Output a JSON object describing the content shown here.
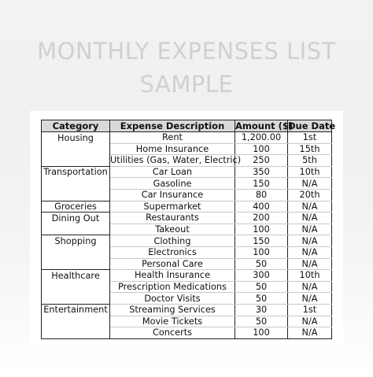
{
  "title": "MONTHLY EXPENSES LIST SAMPLE",
  "table": {
    "headers": [
      "Category",
      "Expense Description",
      "Amount ($)",
      "Due Date"
    ],
    "rows": [
      {
        "category": "Housing",
        "description": "Rent",
        "amount": "1,200.00",
        "due": "1st"
      },
      {
        "category": "",
        "description": "Home Insurance",
        "amount": "100",
        "due": "15th"
      },
      {
        "category": "",
        "description": "Utilities (Gas, Water, Electric)",
        "amount": "250",
        "due": "5th"
      },
      {
        "category": "Transportation",
        "description": "Car Loan",
        "amount": "350",
        "due": "10th"
      },
      {
        "category": "",
        "description": "Gasoline",
        "amount": "150",
        "due": "N/A"
      },
      {
        "category": "",
        "description": "Car Insurance",
        "amount": "80",
        "due": "20th"
      },
      {
        "category": "Groceries",
        "description": "Supermarket",
        "amount": "400",
        "due": "N/A"
      },
      {
        "category": "Dining Out",
        "description": "Restaurants",
        "amount": "200",
        "due": "N/A"
      },
      {
        "category": "",
        "description": "Takeout",
        "amount": "100",
        "due": "N/A"
      },
      {
        "category": "Shopping",
        "description": "Clothing",
        "amount": "150",
        "due": "N/A"
      },
      {
        "category": "",
        "description": "Electronics",
        "amount": "100",
        "due": "N/A"
      },
      {
        "category": "",
        "description": "Personal Care",
        "amount": "50",
        "due": "N/A"
      },
      {
        "category": "Healthcare",
        "description": "Health Insurance",
        "amount": "300",
        "due": "10th"
      },
      {
        "category": "",
        "description": "Prescription Medications",
        "amount": "50",
        "due": "N/A"
      },
      {
        "category": "",
        "description": "Doctor Visits",
        "amount": "50",
        "due": "N/A"
      },
      {
        "category": "Entertainment",
        "description": "Streaming Services",
        "amount": "30",
        "due": "1st"
      },
      {
        "category": "",
        "description": "Movie Tickets",
        "amount": "50",
        "due": "N/A"
      },
      {
        "category": "",
        "description": "Concerts",
        "amount": "100",
        "due": "N/A"
      }
    ]
  }
}
